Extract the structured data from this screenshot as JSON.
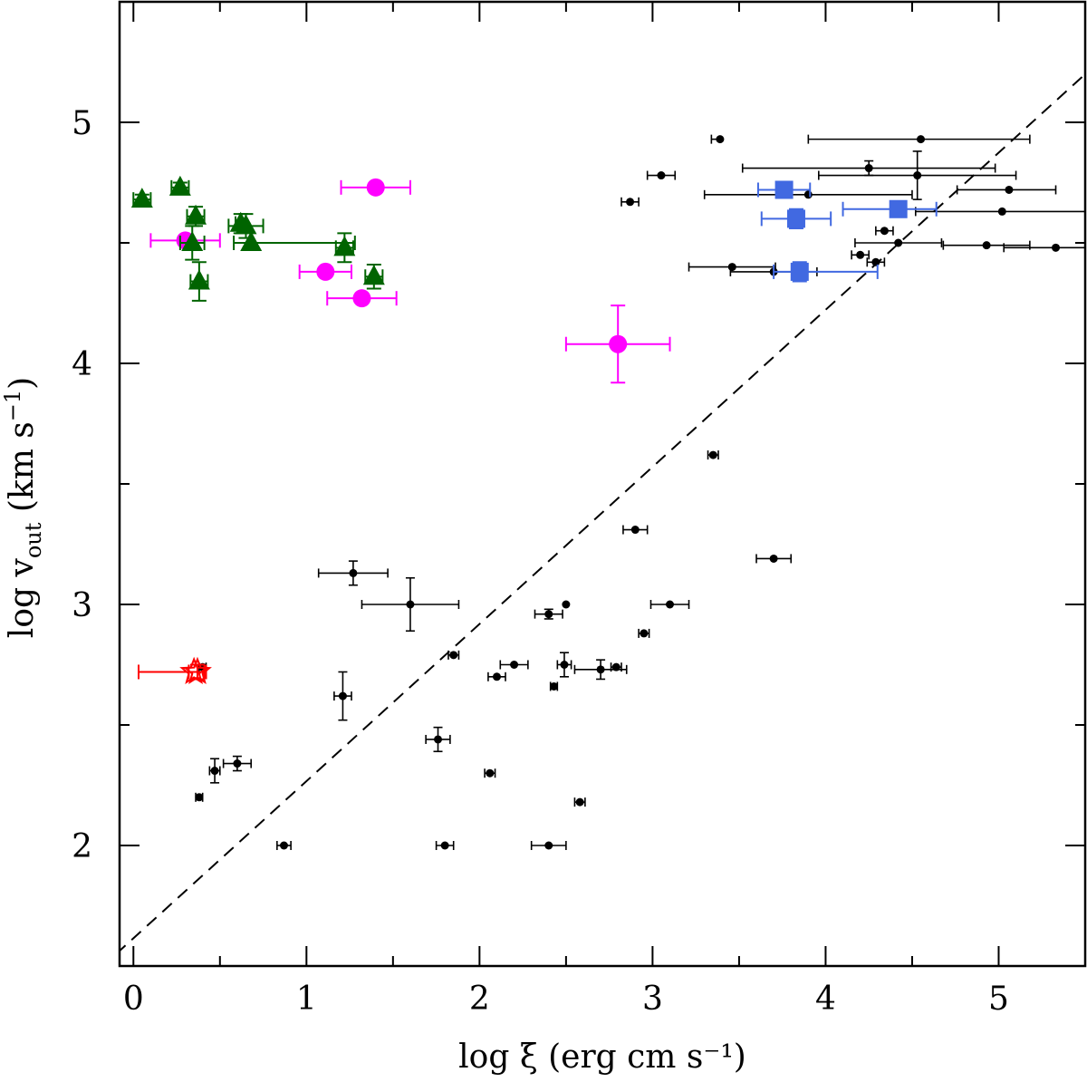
{
  "chart_data": {
    "type": "scatter",
    "xlabel": "log ξ (erg cm s⁻¹)",
    "ylabel_main": "log v",
    "ylabel_sub": "out",
    "ylabel_units": " (km s",
    "ylabel_exp": "−1",
    "ylabel_close": ")",
    "xlim": [
      -0.08,
      5.5
    ],
    "ylim": [
      1.5,
      5.5
    ],
    "xticks_major": [
      0,
      1,
      2,
      3,
      4,
      5
    ],
    "xtick_labels": [
      "0",
      "1",
      "2",
      "3",
      "4",
      "5"
    ],
    "yticks_major": [
      2,
      3,
      4,
      5
    ],
    "ytick_labels": [
      "2",
      "3",
      "4",
      "5"
    ],
    "xticks_minor": [
      0.5,
      1.5,
      2.5,
      3.5,
      4.5
    ],
    "yticks_minor": [
      2.5,
      3.5,
      4.5
    ],
    "reference_line": {
      "style": "dashed",
      "color": "#000000",
      "x": [
        -0.1,
        5.5
      ],
      "y": [
        1.55,
        5.2
      ]
    },
    "series": [
      {
        "name": "black",
        "marker": "small-circle",
        "color": "#000000",
        "points": [
          [
            3.39,
            4.93,
            0.05,
            0,
            0,
            0
          ],
          [
            4.55,
            4.93,
            0.65,
            0.63,
            0,
            0
          ],
          [
            3.05,
            4.78,
            0.08,
            0.08,
            0,
            0
          ],
          [
            4.25,
            4.81,
            0.73,
            0.73,
            0.03,
            0.03
          ],
          [
            4.53,
            4.78,
            0.57,
            0.57,
            0.1,
            0.1
          ],
          [
            2.87,
            4.67,
            0.05,
            0.05,
            0,
            0
          ],
          [
            3.9,
            4.7,
            0.6,
            0.6,
            0,
            0
          ],
          [
            5.06,
            4.72,
            0.3,
            0.27,
            0,
            0
          ],
          [
            5.02,
            4.63,
            0.5,
            0.5,
            0,
            0
          ],
          [
            4.34,
            4.55,
            0.05,
            0.05,
            0,
            0
          ],
          [
            4.42,
            4.5,
            0.25,
            0.25,
            0,
            0
          ],
          [
            4.93,
            4.49,
            0.25,
            0.25,
            0,
            0
          ],
          [
            5.33,
            4.48,
            0.3,
            0.3,
            0,
            0
          ],
          [
            4.2,
            4.45,
            0.05,
            0.05,
            0,
            0
          ],
          [
            4.29,
            4.42,
            0.05,
            0.05,
            0,
            0
          ],
          [
            3.46,
            4.4,
            0.25,
            0.25,
            0,
            0
          ],
          [
            3.7,
            4.38,
            0.25,
            0.25,
            0,
            0
          ],
          [
            3.35,
            3.62,
            0.03,
            0.03,
            0,
            0
          ],
          [
            2.9,
            3.31,
            0.07,
            0.07,
            0,
            0
          ],
          [
            3.7,
            3.19,
            0.1,
            0.1,
            0,
            0
          ],
          [
            1.27,
            3.13,
            0.2,
            0.2,
            0.05,
            0.05
          ],
          [
            1.6,
            3.0,
            0.28,
            0.28,
            0.11,
            0.11
          ],
          [
            2.5,
            3.0,
            0,
            0,
            0,
            0
          ],
          [
            3.1,
            3.0,
            0.11,
            0.11,
            0,
            0
          ],
          [
            2.4,
            2.96,
            0.08,
            0.08,
            0.02,
            0.02
          ],
          [
            2.95,
            2.88,
            0.03,
            0.03,
            0,
            0
          ],
          [
            1.85,
            2.79,
            0.03,
            0.03,
            0,
            0
          ],
          [
            2.2,
            2.75,
            0.08,
            0.08,
            0,
            0
          ],
          [
            2.49,
            2.75,
            0.04,
            0.04,
            0.05,
            0.05
          ],
          [
            2.7,
            2.73,
            0.15,
            0.15,
            0.04,
            0.04
          ],
          [
            2.79,
            2.74,
            0.03,
            0.03,
            0,
            0
          ],
          [
            2.1,
            2.7,
            0.05,
            0.05,
            0,
            0
          ],
          [
            2.43,
            2.66,
            0.02,
            0.02,
            0,
            0
          ],
          [
            1.21,
            2.62,
            0.05,
            0.05,
            0.1,
            0.1
          ],
          [
            1.76,
            2.44,
            0.07,
            0.07,
            0.05,
            0.05
          ],
          [
            0.6,
            2.34,
            0.08,
            0.08,
            0.03,
            0.03
          ],
          [
            0.47,
            2.31,
            0.03,
            0.03,
            0.05,
            0.05
          ],
          [
            2.06,
            2.3,
            0.03,
            0.03,
            0,
            0
          ],
          [
            0.38,
            2.2,
            0.02,
            0.02,
            0,
            0
          ],
          [
            2.58,
            2.18,
            0.03,
            0.03,
            0,
            0
          ],
          [
            0.87,
            2.0,
            0.04,
            0.04,
            0,
            0
          ],
          [
            1.8,
            2.0,
            0.05,
            0.05,
            0,
            0
          ],
          [
            2.4,
            2.0,
            0.1,
            0.1,
            0,
            0
          ],
          [
            0.4,
            2.74,
            0.02,
            0.02,
            0,
            0
          ]
        ]
      },
      {
        "name": "magenta",
        "marker": "circle",
        "color": "#ff00ff",
        "points": [
          [
            1.4,
            4.73,
            0.2,
            0.2,
            0,
            0
          ],
          [
            0.3,
            4.51,
            0.2,
            0.2,
            0,
            0
          ],
          [
            1.11,
            4.38,
            0.15,
            0.15,
            0,
            0
          ],
          [
            1.32,
            4.27,
            0.2,
            0.2,
            0,
            0
          ],
          [
            2.8,
            4.08,
            0.3,
            0.3,
            0.16,
            0.16
          ]
        ]
      },
      {
        "name": "green",
        "marker": "triangle",
        "color": "#006400",
        "points": [
          [
            0.05,
            4.68,
            0.05,
            0.05,
            0.02,
            0.02
          ],
          [
            0.27,
            4.73,
            0.05,
            0.05,
            0.02,
            0.02
          ],
          [
            0.36,
            4.61,
            0.05,
            0.05,
            0.04,
            0.04
          ],
          [
            0.62,
            4.58,
            0.03,
            0.03,
            0.04,
            0.04
          ],
          [
            0.65,
            4.57,
            0.1,
            0.1,
            0.05,
            0.05
          ],
          [
            0.34,
            4.5,
            0.07,
            0.07,
            0.07,
            0.07
          ],
          [
            0.68,
            4.5,
            0.1,
            0.6,
            0,
            0
          ],
          [
            1.22,
            4.48,
            0.05,
            0.05,
            0.06,
            0.06
          ],
          [
            1.39,
            4.36,
            0.05,
            0.05,
            0.05,
            0.05
          ],
          [
            0.38,
            4.34,
            0.05,
            0.05,
            0.08,
            0.08
          ]
        ]
      },
      {
        "name": "blue",
        "marker": "square",
        "color": "#4169e1",
        "points": [
          [
            3.76,
            4.72,
            0.15,
            0.15,
            0,
            0
          ],
          [
            3.83,
            4.6,
            0.2,
            0.2,
            0.04,
            0.04
          ],
          [
            4.42,
            4.64,
            0.32,
            0.22,
            0.03,
            0.03
          ],
          [
            3.85,
            4.38,
            0.15,
            0.45,
            0.04,
            0.04
          ]
        ]
      },
      {
        "name": "red",
        "marker": "open-star",
        "color": "#ff0000",
        "points": [
          [
            0.35,
            2.72,
            0.32,
            0.06,
            0,
            0
          ],
          [
            0.37,
            2.72,
            0.05,
            0.05,
            0.03,
            0.03
          ]
        ]
      }
    ]
  }
}
